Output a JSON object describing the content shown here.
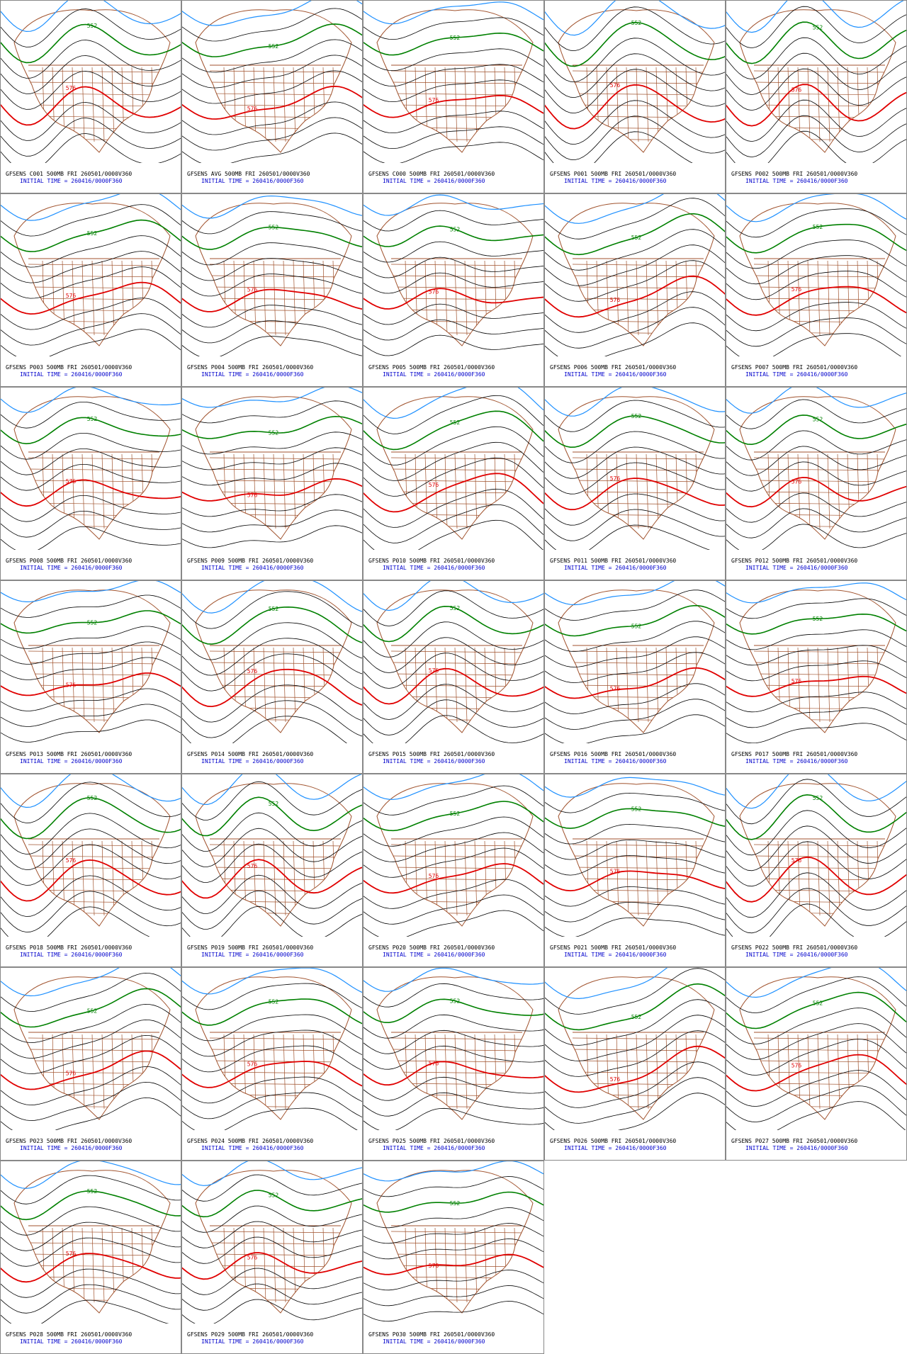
{
  "init_line": "INITIAL TIME = 260416/0000F360",
  "panels": [
    {
      "title": "GFSENS C001 500MB FRI 260501/0000V360",
      "labels": [
        "552",
        "576"
      ]
    },
    {
      "title": "GFSENS AVG 500MB FRI 260501/0000V360",
      "labels": [
        "552",
        "576"
      ]
    },
    {
      "title": "GFSENS C000 500MB FRI 260501/0000V360",
      "labels": [
        "552",
        "576"
      ]
    },
    {
      "title": "GFSENS P001 500MB FRI 260501/0000V360",
      "labels": [
        "552",
        "576"
      ]
    },
    {
      "title": "GFSENS P002 500MB FRI 260501/0000V360",
      "labels": [
        "552",
        "576"
      ]
    },
    {
      "title": "GFSENS P003 500MB FRI 260501/0000V360",
      "labels": [
        "552",
        "576"
      ]
    },
    {
      "title": "GFSENS P004 500MB FRI 260501/0000V360",
      "labels": [
        "552",
        "576"
      ]
    },
    {
      "title": "GFSENS P005 500MB FRI 260501/0000V360",
      "labels": [
        "552",
        "576"
      ]
    },
    {
      "title": "GFSENS P006 500MB FRI 260501/0000V360",
      "labels": [
        "552",
        "576"
      ]
    },
    {
      "title": "GFSENS P007 500MB FRI 260501/0000V360",
      "labels": [
        "552",
        "576"
      ]
    },
    {
      "title": "GFSENS P008 500MB FRI 260501/0000V360",
      "labels": [
        "552",
        "576"
      ]
    },
    {
      "title": "GFSENS P009 500MB FRI 260501/0000V360",
      "labels": [
        "552",
        "576"
      ]
    },
    {
      "title": "GFSENS P010 500MB FRI 260501/0000V360",
      "labels": [
        "552",
        "576"
      ]
    },
    {
      "title": "GFSENS P011 500MB FRI 260501/0000V360",
      "labels": [
        "552",
        "576"
      ]
    },
    {
      "title": "GFSENS P012 500MB FRI 260501/0000V360",
      "labels": [
        "552",
        "576"
      ]
    },
    {
      "title": "GFSENS P013 500MB FRI 260501/0000V360",
      "labels": [
        "552",
        "576"
      ]
    },
    {
      "title": "GFSENS P014 500MB FRI 260501/0000V360",
      "labels": [
        "552",
        "576"
      ]
    },
    {
      "title": "GFSENS P015 500MB FRI 260501/0000V360",
      "labels": [
        "552",
        "576"
      ]
    },
    {
      "title": "GFSENS P016 500MB FRI 260501/0000V360",
      "labels": [
        "552",
        "576"
      ]
    },
    {
      "title": "GFSENS P017 500MB FRI 260501/0000V360",
      "labels": [
        "552",
        "576"
      ]
    },
    {
      "title": "GFSENS P018 500MB FRI 260501/0000V360",
      "labels": [
        "552",
        "576"
      ]
    },
    {
      "title": "GFSENS P019 500MB FRI 260501/0000V360",
      "labels": [
        "552",
        "576"
      ]
    },
    {
      "title": "GFSENS P020 500MB FRI 260501/0000V360",
      "labels": [
        "552",
        "576"
      ]
    },
    {
      "title": "GFSENS P021 500MB FRI 260501/0000V360",
      "labels": [
        "552",
        "576"
      ]
    },
    {
      "title": "GFSENS P022 500MB FRI 260501/0000V360",
      "labels": [
        "552",
        "576"
      ]
    },
    {
      "title": "GFSENS P023 500MB FRI 260501/0000V360",
      "labels": [
        "552",
        "576"
      ]
    },
    {
      "title": "GFSENS P024 500MB FRI 260501/0000V360",
      "labels": [
        "552",
        "576"
      ]
    },
    {
      "title": "GFSENS P025 500MB FRI 260501/0000V360",
      "labels": [
        "552",
        "576"
      ]
    },
    {
      "title": "GFSENS P026 500MB FRI 260501/0000V360",
      "labels": [
        "552",
        "576"
      ]
    },
    {
      "title": "GFSENS P027 500MB FRI 260501/0000V360",
      "labels": [
        "552",
        "576"
      ]
    },
    {
      "title": "GFSENS P028 500MB FRI 260501/0000V360",
      "labels": [
        "552",
        "576"
      ]
    },
    {
      "title": "GFSENS P029 500MB FRI 260501/0000V360",
      "labels": [
        "552",
        "576"
      ]
    },
    {
      "title": "GFSENS P030 500MB FRI 260501/0000V360",
      "labels": [
        "552",
        "576"
      ]
    }
  ]
}
